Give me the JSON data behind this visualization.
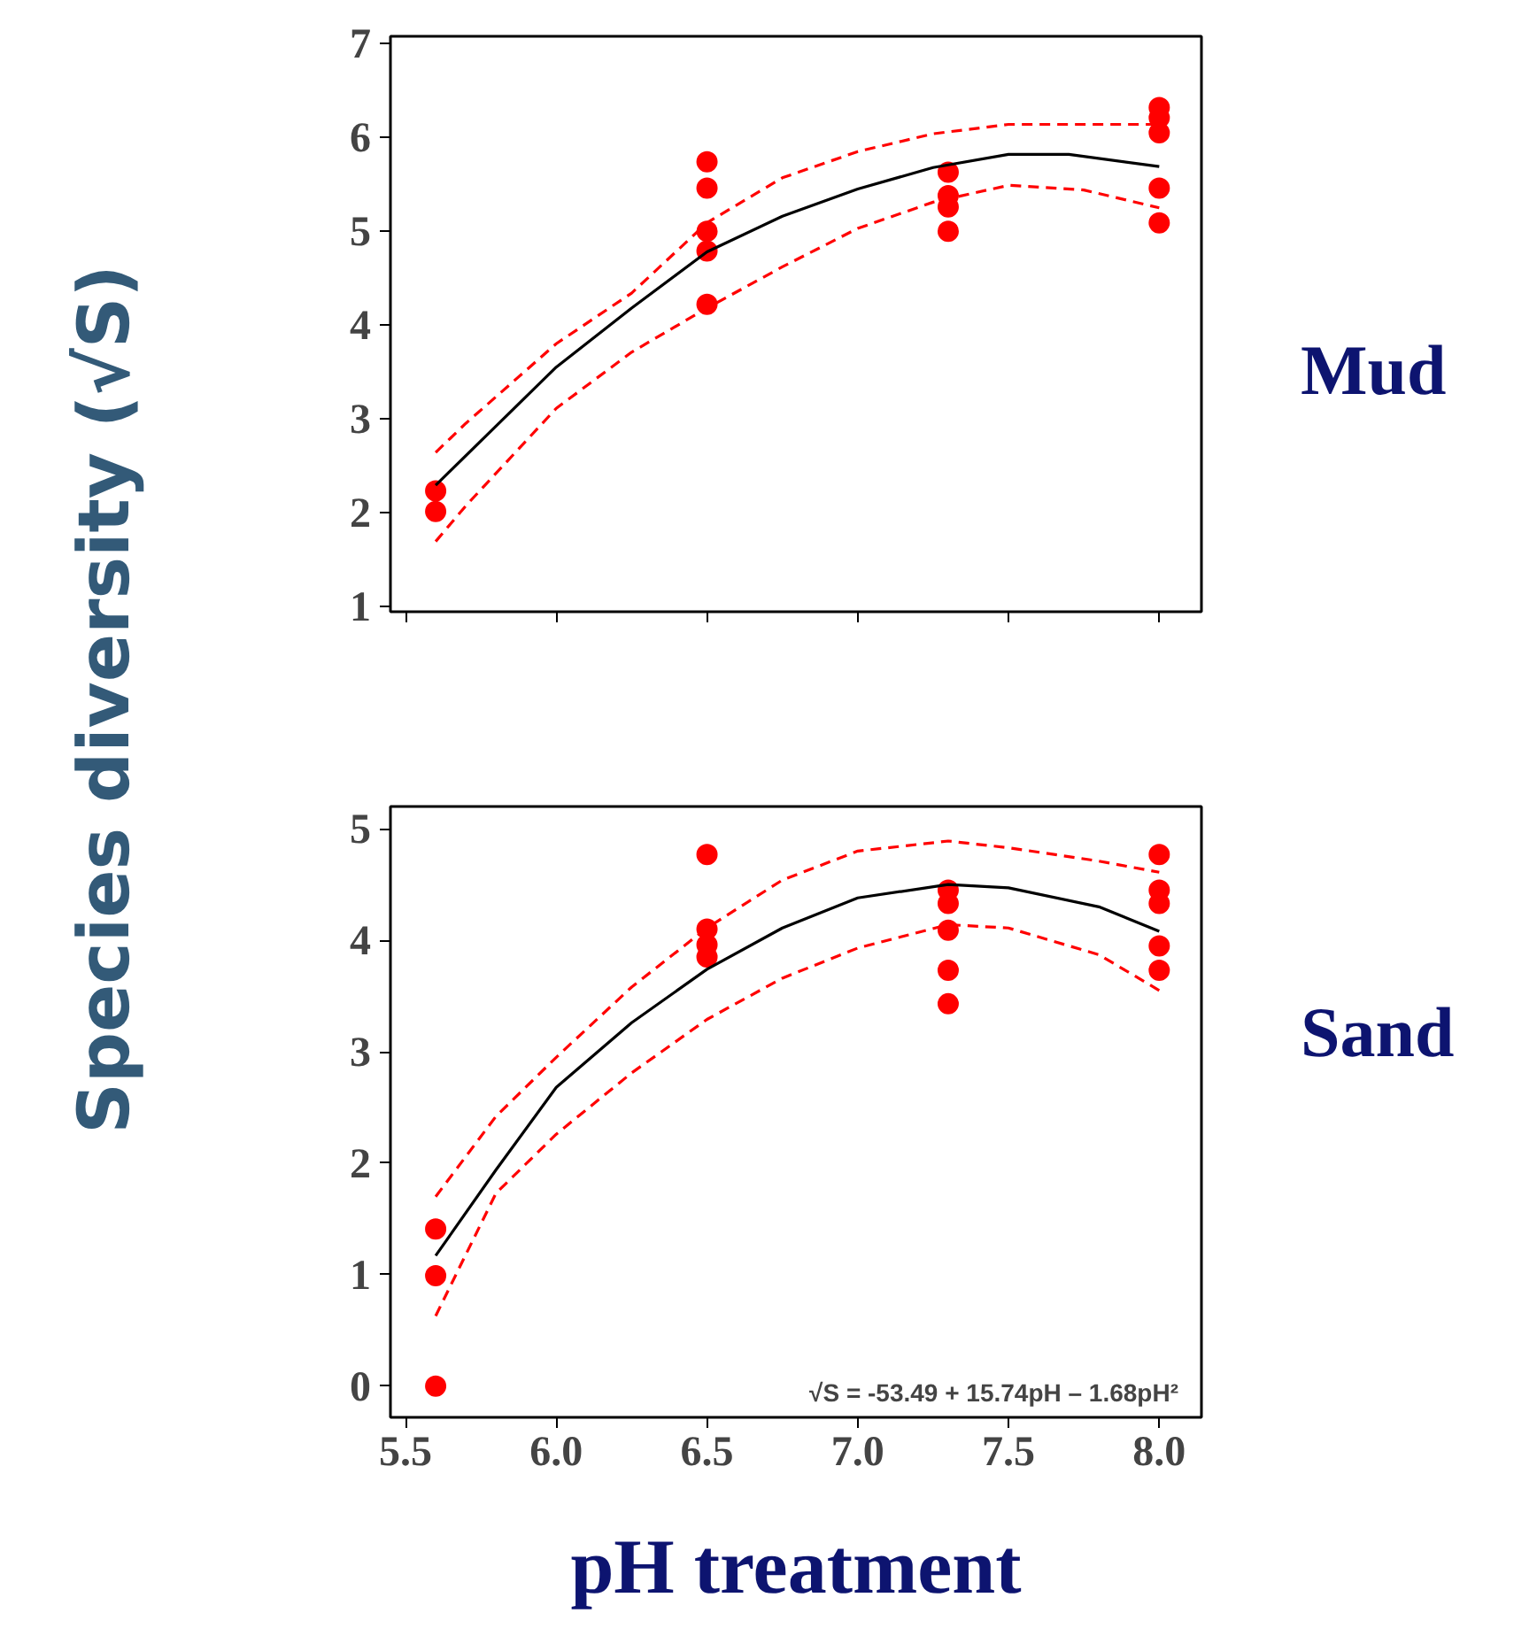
{
  "chart_data": [
    {
      "type": "scatter",
      "annotations": [
        "Mud"
      ],
      "ylabel": "Species diversity (√S)",
      "xlim": [
        5.45,
        8.14
      ],
      "ylim": [
        0.94,
        7.08
      ],
      "xticks": [
        5.5,
        6.0,
        6.5,
        7.0,
        7.5,
        8.0
      ],
      "yticks": [
        1,
        2,
        3,
        4,
        5,
        6,
        7
      ],
      "tick_labels": "y",
      "grid": false,
      "series": [
        {
          "type": "scatter",
          "marker": "circle",
          "color": "#ff0000",
          "x": [
            5.6,
            5.6,
            6.5,
            6.5,
            6.5,
            6.5,
            6.5,
            7.3,
            7.3,
            7.3,
            7.3,
            8.0,
            8.0,
            8.0,
            8.0,
            8.0
          ],
          "values": [
            2.23,
            2.01,
            5.74,
            5.46,
            5.0,
            4.79,
            4.22,
            5.63,
            5.38,
            5.26,
            5.0,
            6.32,
            6.21,
            6.05,
            5.46,
            5.09
          ]
        },
        {
          "type": "line",
          "line_style": "solid",
          "color": "#000000",
          "x": [
            5.6,
            6.0,
            6.25,
            6.5,
            6.75,
            7.0,
            7.25,
            7.5,
            7.7,
            8.0
          ],
          "values": [
            2.29,
            3.55,
            4.18,
            4.78,
            5.16,
            5.45,
            5.68,
            5.82,
            5.82,
            5.69
          ]
        },
        {
          "type": "line",
          "line_style": "dashed",
          "color": "#ff0000",
          "x": [
            5.6,
            5.7,
            6.0,
            6.25,
            6.5,
            6.75,
            7.0,
            7.25,
            7.5,
            8.0
          ],
          "values": [
            2.64,
            2.95,
            3.8,
            4.34,
            5.09,
            5.57,
            5.85,
            6.04,
            6.14,
            6.14
          ]
        },
        {
          "type": "line",
          "line_style": "dashed",
          "color": "#ff0000",
          "x": [
            5.6,
            5.7,
            6.0,
            6.25,
            6.5,
            6.75,
            7.0,
            7.25,
            7.5,
            7.75,
            8.0
          ],
          "values": [
            1.69,
            2.07,
            3.11,
            3.71,
            4.18,
            4.62,
            5.03,
            5.31,
            5.49,
            5.44,
            5.25
          ]
        }
      ]
    },
    {
      "type": "scatter",
      "xlabel": "pH treatment",
      "xlim": [
        5.45,
        8.14
      ],
      "ylim": [
        -0.28,
        5.2
      ],
      "xticks": [
        {
          "value": 5.5,
          "label": "5.5"
        },
        {
          "value": 6.0,
          "label": "6.0"
        },
        {
          "value": 6.5,
          "label": "6.5"
        },
        {
          "value": 7.0,
          "label": "7.0"
        },
        {
          "value": 7.5,
          "label": "7.5"
        },
        {
          "value": 8.0,
          "label": "8.0"
        }
      ],
      "yticks": [
        0,
        1,
        2,
        3,
        4,
        5
      ],
      "grid": false,
      "annotations": [
        "Sand",
        "√S = -53.49 + 15.74pH – 1.68pH²"
      ],
      "series": [
        {
          "type": "scatter",
          "marker": "circle",
          "color": "#ff0000",
          "x": [
            5.6,
            5.6,
            5.6,
            6.5,
            6.5,
            6.5,
            6.5,
            7.3,
            7.3,
            7.3,
            7.3,
            7.3,
            8.0,
            8.0,
            8.0,
            8.0,
            8.0
          ],
          "values": [
            1.41,
            0.99,
            0,
            4.77,
            4.1,
            3.96,
            3.85,
            4.45,
            4.33,
            4.09,
            3.73,
            3.43,
            4.77,
            4.45,
            4.33,
            3.95,
            3.73
          ]
        },
        {
          "type": "line",
          "line_style": "solid",
          "color": "#000000",
          "x": [
            5.6,
            5.8,
            6.0,
            6.25,
            6.5,
            6.75,
            7.0,
            7.3,
            7.5,
            7.8,
            8.0
          ],
          "values": [
            1.17,
            1.94,
            2.68,
            3.26,
            3.74,
            4.11,
            4.38,
            4.5,
            4.47,
            4.3,
            4.08
          ]
        },
        {
          "type": "line",
          "line_style": "dashed",
          "color": "#ff0000",
          "x": [
            5.6,
            5.8,
            6.0,
            6.25,
            6.5,
            6.75,
            7.0,
            7.3,
            7.5,
            7.8,
            8.0
          ],
          "values": [
            1.7,
            2.42,
            2.95,
            3.58,
            4.11,
            4.54,
            4.8,
            4.89,
            4.83,
            4.71,
            4.61
          ]
        },
        {
          "type": "line",
          "line_style": "dashed",
          "color": "#ff0000",
          "x": [
            5.6,
            5.8,
            6.0,
            6.25,
            6.5,
            6.75,
            7.0,
            7.3,
            7.5,
            7.8,
            8.0
          ],
          "values": [
            0.63,
            1.73,
            2.26,
            2.81,
            3.29,
            3.66,
            3.93,
            4.14,
            4.11,
            3.87,
            3.55
          ]
        }
      ]
    }
  ]
}
